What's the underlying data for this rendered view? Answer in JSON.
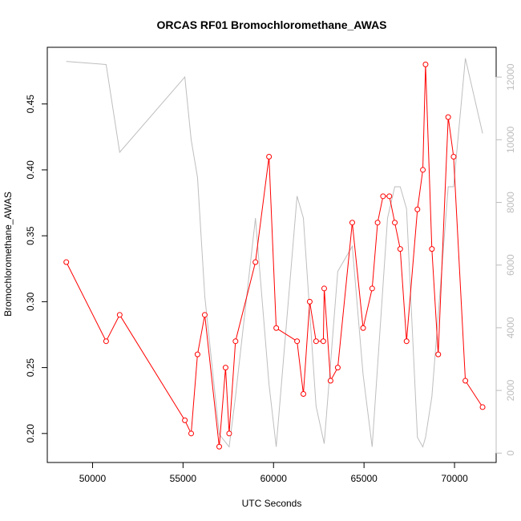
{
  "chart_data": {
    "type": "line",
    "title": "ORCAS RF01 Bromochloromethane_AWAS",
    "xlabel": "UTC Seconds",
    "ylabel": "Bromochloromethane_AWAS",
    "xlim": [
      47500,
      72300
    ],
    "ylim": [
      0.178,
      0.493
    ],
    "y2lim": [
      -300,
      12950
    ],
    "x_ticks": [
      50000,
      55000,
      60000,
      65000,
      70000
    ],
    "y_ticks": [
      0.2,
      0.25,
      0.3,
      0.35,
      0.4,
      0.45
    ],
    "y_tick_labels": [
      "0.20",
      "0.25",
      "0.30",
      "0.35",
      "0.40",
      "0.45"
    ],
    "y2_ticks": [
      0,
      2000,
      4000,
      6000,
      8000,
      10000,
      12000
    ],
    "grid": false,
    "colors": {
      "primary": "#ff0000",
      "secondary": "#bebebe",
      "axis": "#000000",
      "right_axis": "#bdbdbd"
    },
    "series": [
      {
        "axis": "left",
        "color": "#ff0000",
        "markers": "open-circle",
        "x": [
          48550,
          50750,
          51500,
          55100,
          55450,
          55800,
          56200,
          57000,
          57350,
          57550,
          57900,
          59000,
          59750,
          60150,
          61300,
          61650,
          62000,
          62350,
          62750,
          62800,
          63150,
          63550,
          64350,
          64950,
          65450,
          65750,
          66050,
          66400,
          66700,
          67000,
          67350,
          67950,
          68250,
          68400,
          68750,
          69100,
          69650,
          69950,
          70600,
          71550
        ],
        "y": [
          0.33,
          0.27,
          0.29,
          0.21,
          0.2,
          0.26,
          0.29,
          0.19,
          0.25,
          0.2,
          0.27,
          0.33,
          0.41,
          0.28,
          0.27,
          0.23,
          0.3,
          0.27,
          0.27,
          0.31,
          0.24,
          0.25,
          0.36,
          0.28,
          0.31,
          0.36,
          0.38,
          0.38,
          0.36,
          0.34,
          0.27,
          0.37,
          0.4,
          0.48,
          0.34,
          0.26,
          0.44,
          0.41,
          0.24,
          0.22
        ]
      },
      {
        "axis": "right",
        "color": "#bebebe",
        "markers": "none",
        "x": [
          48550,
          50750,
          51500,
          55100,
          55450,
          55800,
          56200,
          57000,
          57550,
          57900,
          59000,
          59750,
          60150,
          61300,
          61650,
          62350,
          62800,
          63550,
          64350,
          64950,
          65450,
          66300,
          66700,
          67000,
          67350,
          67950,
          68250,
          68400,
          68750,
          69650,
          69950,
          70600,
          71550
        ],
        "y": [
          12500,
          12400,
          9600,
          12000,
          10000,
          8800,
          5000,
          600,
          200,
          1800,
          7500,
          2200,
          200,
          8200,
          7500,
          1500,
          300,
          5800,
          6600,
          2500,
          200,
          7500,
          8500,
          8500,
          7800,
          500,
          200,
          500,
          1800,
          8500,
          8500,
          12600,
          10200
        ]
      }
    ]
  }
}
